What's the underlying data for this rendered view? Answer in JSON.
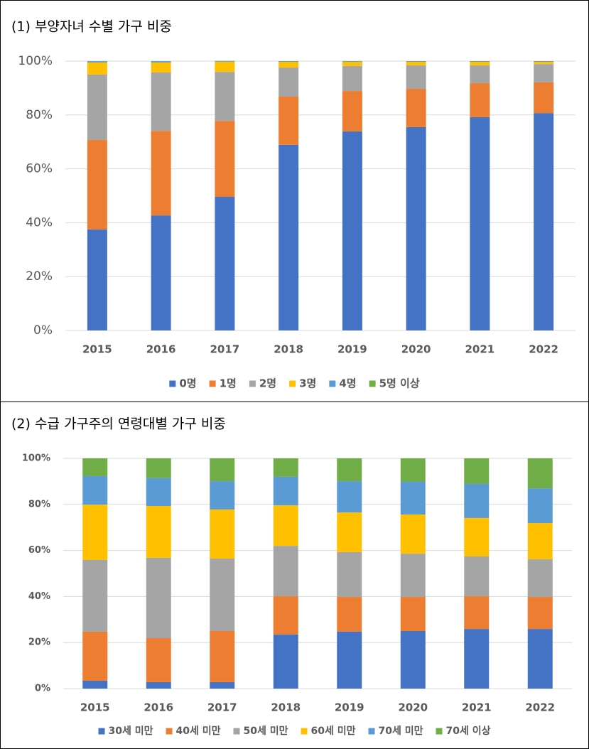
{
  "chart_data": [
    {
      "type": "bar",
      "stacked": true,
      "title": "(1) 부양자녀 수별 가구 비중",
      "categories": [
        "2015",
        "2016",
        "2017",
        "2018",
        "2019",
        "2020",
        "2021",
        "2022"
      ],
      "series": [
        {
          "name": "0명",
          "color": "#4472c4",
          "values": [
            37.5,
            42.7,
            49.6,
            68.9,
            73.9,
            75.5,
            79.2,
            80.7
          ]
        },
        {
          "name": "1명",
          "color": "#ed7d31",
          "values": [
            33.2,
            31.4,
            28.2,
            17.9,
            15,
            14.2,
            12.6,
            11.4
          ]
        },
        {
          "name": "2명",
          "color": "#a5a5a5",
          "values": [
            24.3,
            21.7,
            18.2,
            10.8,
            9.3,
            8.7,
            6.6,
            6.8
          ]
        },
        {
          "name": "3명",
          "color": "#ffc000",
          "values": [
            4.5,
            3.7,
            3.8,
            2.1,
            1.5,
            1.3,
            1.3,
            0.8
          ]
        },
        {
          "name": "4명",
          "color": "#5b9bd5",
          "values": [
            0.4,
            0.4,
            0.2,
            0.2,
            0.2,
            0.2,
            0.2,
            0.2
          ]
        },
        {
          "name": "5명 이상",
          "color": "#70ad47",
          "values": [
            0.1,
            0.1,
            0.1,
            0.1,
            0.1,
            0.1,
            0.1,
            0.1
          ]
        }
      ],
      "ylim": [
        0,
        100
      ],
      "yticks": [
        {
          "value": 0,
          "label": "0%"
        },
        {
          "value": 20,
          "label": "20%"
        },
        {
          "value": 40,
          "label": "40%"
        },
        {
          "value": 60,
          "label": "60%"
        },
        {
          "value": 80,
          "label": "80%"
        },
        {
          "value": 100,
          "label": "100%"
        }
      ],
      "grid": true,
      "legend": "bottom"
    },
    {
      "type": "bar",
      "stacked": true,
      "title": "(2) 수급 가구주의 연령대별 가구 비중",
      "categories": [
        "2015",
        "2016",
        "2017",
        "2018",
        "2019",
        "2020",
        "2021",
        "2022"
      ],
      "series": [
        {
          "name": "30세 미만",
          "color": "#4472c4",
          "values": [
            3.4,
            2.8,
            2.8,
            23.5,
            24.7,
            25,
            25.9,
            25.9
          ]
        },
        {
          "name": "40세 미만",
          "color": "#ed7d31",
          "values": [
            21.3,
            19.1,
            22.2,
            16.6,
            15.1,
            14.8,
            14.2,
            13.9
          ]
        },
        {
          "name": "50세 미만",
          "color": "#a5a5a5",
          "values": [
            31.2,
            34.9,
            31.5,
            21.9,
            19.5,
            18.8,
            17.3,
            16.4
          ]
        },
        {
          "name": "60세 미만",
          "color": "#ffc000",
          "values": [
            24,
            22.5,
            21.3,
            17.6,
            17.2,
            17,
            16.7,
            15.7
          ]
        },
        {
          "name": "70세 미만",
          "color": "#5b9bd5",
          "values": [
            12.4,
            12.1,
            12.3,
            12.4,
            13.6,
            14.2,
            14.8,
            15.1
          ]
        },
        {
          "name": "70세 이상",
          "color": "#70ad47",
          "values": [
            7.7,
            8.6,
            9.9,
            8,
            9.9,
            10.2,
            11.1,
            13
          ]
        }
      ],
      "ylim": [
        0,
        100
      ],
      "yticks": [
        {
          "value": 0,
          "label": "0%"
        },
        {
          "value": 20,
          "label": "20%"
        },
        {
          "value": 40,
          "label": "40%"
        },
        {
          "value": 60,
          "label": "60%"
        },
        {
          "value": 80,
          "label": "80%"
        },
        {
          "value": 100,
          "label": "100%"
        }
      ],
      "grid": true,
      "legend": "bottom"
    }
  ]
}
